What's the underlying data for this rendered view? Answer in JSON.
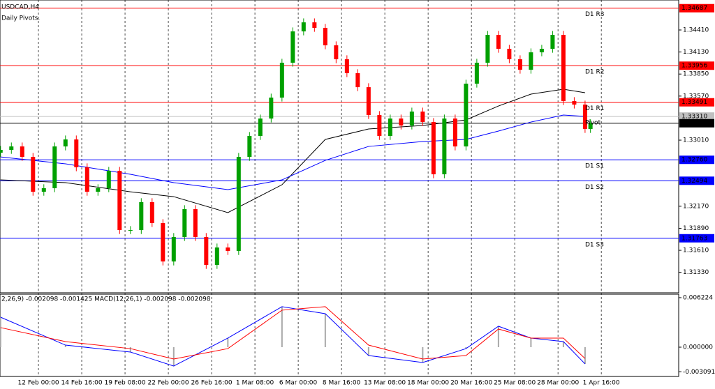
{
  "chart_data": [
    {
      "type": "candlestick",
      "title": "USDCAD,H4",
      "subtitle": "Daily Pivots.",
      "x": [
        2,
        6,
        10,
        14,
        18,
        22,
        26,
        30,
        34,
        38,
        42,
        46,
        50,
        54,
        58,
        62,
        66,
        70,
        74,
        78,
        82,
        86,
        90,
        94,
        98,
        102,
        106,
        110,
        114,
        118,
        122,
        126,
        130,
        134,
        138,
        142,
        146,
        150,
        154,
        158,
        162,
        166,
        170,
        174,
        178,
        182,
        186,
        190,
        194,
        198,
        202,
        206,
        210,
        214,
        218,
        220
      ],
      "open": [
        1.3285,
        1.32886,
        1.3293,
        1.32797,
        1.32354,
        1.32399,
        1.3293,
        1.33019,
        1.32665,
        1.32354,
        1.32399,
        1.3262,
        1.31867,
        1.31867,
        1.32222,
        1.31956,
        1.31468,
        1.31779,
        1.32133,
        1.31779,
        1.31424,
        1.31646,
        1.31601,
        1.32797,
        1.33063,
        1.33285,
        1.33551,
        1.33994,
        1.34392,
        1.34507,
        1.34437,
        1.34215,
        1.34038,
        1.33861,
        1.33683,
        1.33329,
        1.33063,
        1.33285,
        1.33196,
        1.33373,
        1.3324,
        1.32576,
        1.33285,
        1.3293,
        1.33728,
        1.33994,
        1.34348,
        1.34171,
        1.34038,
        1.33905,
        1.34126,
        1.34171,
        1.34348,
        1.33506,
        1.33462,
        1.33152
      ],
      "high": [
        1.32936,
        1.3298,
        1.3298,
        1.32847,
        1.32449,
        1.3298,
        1.33069,
        1.33069,
        1.32715,
        1.32449,
        1.3267,
        1.3267,
        1.31917,
        1.32272,
        1.32272,
        1.32006,
        1.31829,
        1.32183,
        1.32183,
        1.31829,
        1.31696,
        1.31696,
        1.32847,
        1.33113,
        1.33335,
        1.33601,
        1.34044,
        1.34442,
        1.34557,
        1.34557,
        1.34487,
        1.34265,
        1.34088,
        1.33911,
        1.33733,
        1.33379,
        1.33335,
        1.33335,
        1.33423,
        1.33423,
        1.3329,
        1.33335,
        1.33335,
        1.33778,
        1.34044,
        1.34398,
        1.34398,
        1.34221,
        1.34088,
        1.34176,
        1.34221,
        1.34398,
        1.34398,
        1.33556,
        1.33512,
        1.33275
      ],
      "low": [
        1.328,
        1.32836,
        1.32747,
        1.32304,
        1.32304,
        1.32349,
        1.3288,
        1.32615,
        1.32304,
        1.32304,
        1.32349,
        1.31817,
        1.31817,
        1.31817,
        1.31906,
        1.31418,
        1.31418,
        1.31729,
        1.31729,
        1.31374,
        1.31374,
        1.31551,
        1.31551,
        1.32747,
        1.33013,
        1.33235,
        1.33501,
        1.33944,
        1.34342,
        1.34387,
        1.34165,
        1.33988,
        1.33811,
        1.33633,
        1.33279,
        1.33013,
        1.33013,
        1.33146,
        1.33146,
        1.3319,
        1.32526,
        1.32526,
        1.3288,
        1.3288,
        1.33678,
        1.33944,
        1.34121,
        1.33988,
        1.33855,
        1.33855,
        1.34076,
        1.34121,
        1.33456,
        1.33412,
        1.33102,
        1.33102
      ],
      "close": [
        1.32886,
        1.3293,
        1.32797,
        1.32354,
        1.32399,
        1.3293,
        1.33019,
        1.32665,
        1.32354,
        1.32399,
        1.3262,
        1.31867,
        1.31867,
        1.32222,
        1.31956,
        1.31468,
        1.31779,
        1.32133,
        1.31779,
        1.31424,
        1.31646,
        1.31601,
        1.32797,
        1.33063,
        1.33285,
        1.33551,
        1.33994,
        1.34392,
        1.34507,
        1.34437,
        1.34215,
        1.34038,
        1.33861,
        1.33683,
        1.33329,
        1.33063,
        1.33285,
        1.33196,
        1.33373,
        1.3324,
        1.32576,
        1.33285,
        1.3293,
        1.33728,
        1.33994,
        1.34348,
        1.34171,
        1.34038,
        1.33905,
        1.34126,
        1.34171,
        1.34348,
        1.33506,
        1.33462,
        1.33152,
        1.33225
      ],
      "up_color": "#00a000",
      "down_color": "#ff0000",
      "moving_averages": {
        "x": [
          2,
          26,
          50,
          66,
          86,
          106,
          122,
          138,
          158,
          174,
          186,
          198,
          210,
          218
        ],
        "series": [
          {
            "color": "#000000",
            "values": [
              1.32505,
              1.3247,
              1.32354,
              1.32292,
              1.32089,
              1.32443,
              1.33019,
              1.33152,
              1.33196,
              1.33267,
              1.33444,
              1.33595,
              1.33657,
              1.33613
            ]
          },
          {
            "color": "#0000ff",
            "values": [
              1.32797,
              1.32709,
              1.32576,
              1.3247,
              1.32381,
              1.32505,
              1.32753,
              1.3293,
              1.32992,
              1.33019,
              1.33125,
              1.3324,
              1.33329,
              1.33311
            ]
          }
        ]
      },
      "levels": {
        "names": [
          "D1 R3",
          "D1 R2",
          "D1 R1",
          "Pivot",
          "D1 S1",
          "D1 S2",
          "D1 S3"
        ],
        "values": [
          1.34687,
          1.33956,
          1.33491,
          1.3331,
          1.3276,
          1.32494,
          1.31763
        ],
        "value_labels": [
          "1.34687",
          "1.33956",
          "1.33491",
          "1.33310",
          "1.32760",
          "1.32494",
          "1.31763"
        ],
        "colors": [
          "#ff0000",
          "#ff0000",
          "#ff0000",
          "#c0c0c0",
          "#0000ff",
          "#0000ff",
          "#0000ff"
        ]
      },
      "price_line": {
        "value": 1.33225,
        "label": "1.33225",
        "color": "#000000"
      },
      "xlim": [
        1.8,
        252.6
      ],
      "xticks": [
        {
          "value": 16,
          "label": "12 Feb 00:00"
        },
        {
          "value": 32,
          "label": "14 Feb 16:00"
        },
        {
          "value": 48,
          "label": "19 Feb 08:00"
        },
        {
          "value": 64,
          "label": "22 Feb 00:00"
        },
        {
          "value": 80,
          "label": "26 Feb 16:00"
        },
        {
          "value": 96,
          "label": "1 Mar 08:00"
        },
        {
          "value": 112,
          "label": "6 Mar 00:00"
        },
        {
          "value": 128,
          "label": "8 Mar 16:00"
        },
        {
          "value": 144,
          "label": "13 Mar 08:00"
        },
        {
          "value": 160,
          "label": "18 Mar 00:00"
        },
        {
          "value": 176,
          "label": "20 Mar 16:00"
        },
        {
          "value": 192,
          "label": "25 Mar 08:00"
        },
        {
          "value": 208,
          "label": "28 Mar 00:00"
        },
        {
          "value": 224,
          "label": "1 Apr 16:00"
        }
      ],
      "ylim": [
        1.3107,
        1.34791
      ],
      "yticks": [
        {
          "value": 1.3441,
          "label": "1.34410"
        },
        {
          "value": 1.3413,
          "label": "1.34130"
        },
        {
          "value": 1.3385,
          "label": "1.33850"
        },
        {
          "value": 1.3357,
          "label": "1.33570"
        },
        {
          "value": 1.3301,
          "label": "1.33010"
        },
        {
          "value": 1.3217,
          "label": "1.32170"
        },
        {
          "value": 1.3189,
          "label": "1.31890"
        },
        {
          "value": 1.3161,
          "label": "1.31610"
        },
        {
          "value": 1.3133,
          "label": "1.31330"
        }
      ]
    },
    {
      "type": "macd",
      "title": "2,26,9) -0.002098 -0.001425 MACD(12,26,1) -0.002098 -0.002098",
      "x": [
        2,
        26,
        50,
        66,
        86,
        106,
        122,
        138,
        158,
        174,
        186,
        198,
        210,
        218
      ],
      "series": [
        {
          "color": "#0000ff",
          "values": [
            0.00377,
            0.00026,
            -0.00061,
            -0.00237,
            0.00114,
            0.00509,
            0.00421,
            -0.00105,
            -0.00193,
            -0.00018,
            0.00263,
            0.00114,
            0.0007,
            -0.0021
          ]
        },
        {
          "color": "#ff0000",
          "values": [
            0.00246,
            0.0007,
            -0.00018,
            -0.00149,
            -0.00018,
            0.00465,
            0.00509,
            0.00026,
            -0.00149,
            -0.00105,
            0.00228,
            0.00114,
            0.00114,
            -0.00143
          ]
        }
      ],
      "histogram_color": "#a8a8a8",
      "xlim": [
        1.8,
        252.6
      ],
      "ylim": [
        -0.00368,
        0.00666
      ],
      "yticks": [
        0.006224,
        {
          "value": 0,
          "label": "0.000000"
        },
        -0.003091
      ]
    }
  ]
}
